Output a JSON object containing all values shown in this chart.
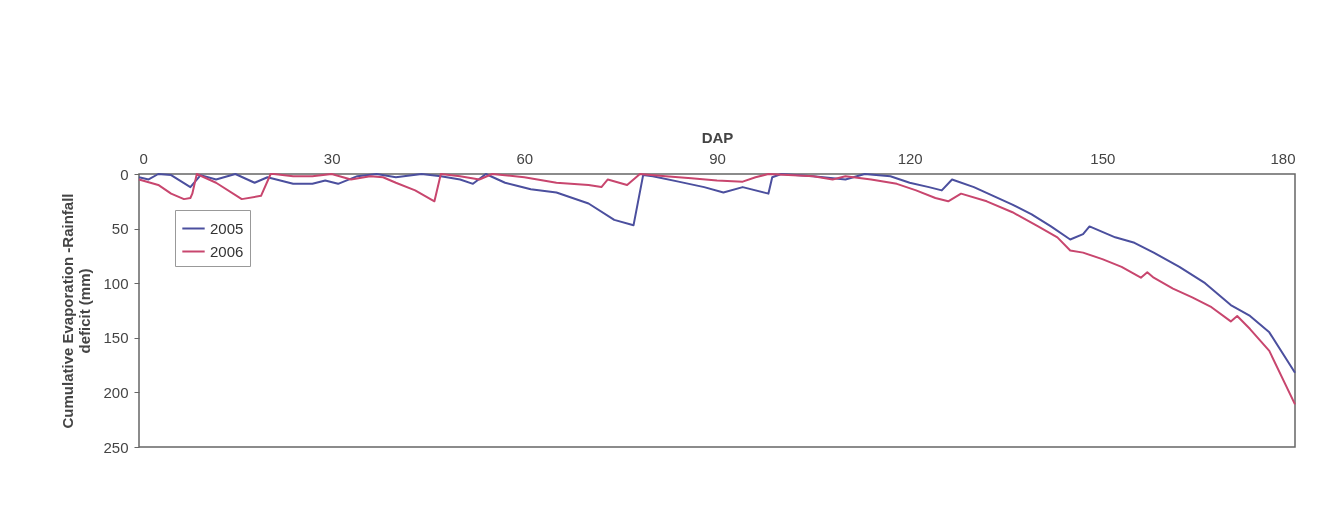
{
  "chart_data": {
    "type": "line",
    "xlabel": "DAP",
    "ylabel": [
      "Cumulative Evaporation -Rainfall",
      "deficit (mm)"
    ],
    "xlim": [
      0,
      180
    ],
    "xticks": [
      0,
      30,
      60,
      90,
      120,
      150,
      180
    ],
    "ylim": [
      250,
      0
    ],
    "yticks": [
      0,
      50,
      100,
      150,
      200,
      250
    ],
    "grid": false,
    "legend": "top left",
    "marker": "none",
    "line_style": "solid",
    "series": [
      {
        "name": "2005",
        "color": "#4b4f9e",
        "x": [
          0,
          1.5,
          3,
          5,
          8,
          9.6,
          12,
          15,
          18,
          20,
          24,
          27,
          29,
          31,
          34,
          37,
          40,
          44,
          47,
          50,
          52,
          54,
          57,
          59,
          61,
          65,
          70,
          74,
          77,
          78.5,
          80,
          84,
          88,
          91,
          94,
          98,
          98.6,
          100,
          105,
          110,
          113,
          117,
          120,
          123,
          125,
          126.6,
          130,
          133,
          136,
          139,
          142,
          145,
          147,
          148,
          150,
          152,
          155,
          158,
          162,
          166,
          170,
          173,
          176,
          180
        ],
        "values": [
          3,
          5,
          0,
          1,
          12,
          1,
          5,
          0,
          8,
          3,
          9,
          9,
          6,
          9,
          2,
          0,
          3,
          0,
          2,
          5,
          9,
          0,
          8,
          11,
          14,
          17,
          27,
          42,
          47,
          1,
          2,
          7,
          12,
          17,
          12,
          18,
          3,
          0,
          2,
          5,
          0,
          2,
          8,
          12,
          15,
          5,
          12,
          20,
          28,
          37,
          48,
          60,
          55,
          48,
          53,
          58,
          63,
          72,
          85,
          100,
          120,
          130,
          145,
          182
        ]
      },
      {
        "name": "2006",
        "color": "#c8466e",
        "x": [
          0,
          3,
          5,
          7,
          8,
          8.3,
          9,
          12,
          16,
          19,
          20.5,
          21,
          24,
          27,
          30,
          33,
          36,
          38,
          40,
          43,
          46,
          47,
          50,
          53,
          55,
          60,
          65,
          70,
          72,
          73,
          76,
          78,
          82,
          86,
          90,
          94,
          96,
          98,
          105,
          108,
          110,
          114,
          118,
          121,
          124,
          126,
          128,
          132,
          136,
          140,
          143,
          145,
          147,
          150,
          153,
          156,
          157,
          158,
          161,
          164,
          167,
          170,
          171,
          173,
          176,
          180
        ],
        "values": [
          5,
          10,
          18,
          23,
          22,
          18,
          0,
          8,
          23,
          20,
          0,
          0,
          2,
          2,
          0,
          5,
          2,
          3,
          8,
          15,
          25,
          0,
          2,
          5,
          0,
          3,
          8,
          10,
          12,
          5,
          10,
          0,
          2,
          4,
          6,
          7,
          3,
          0,
          2,
          5,
          2,
          5,
          9,
          15,
          22,
          25,
          18,
          25,
          35,
          48,
          58,
          70,
          72,
          78,
          85,
          95,
          90,
          95,
          105,
          113,
          122,
          135,
          130,
          142,
          162,
          211
        ]
      }
    ]
  }
}
